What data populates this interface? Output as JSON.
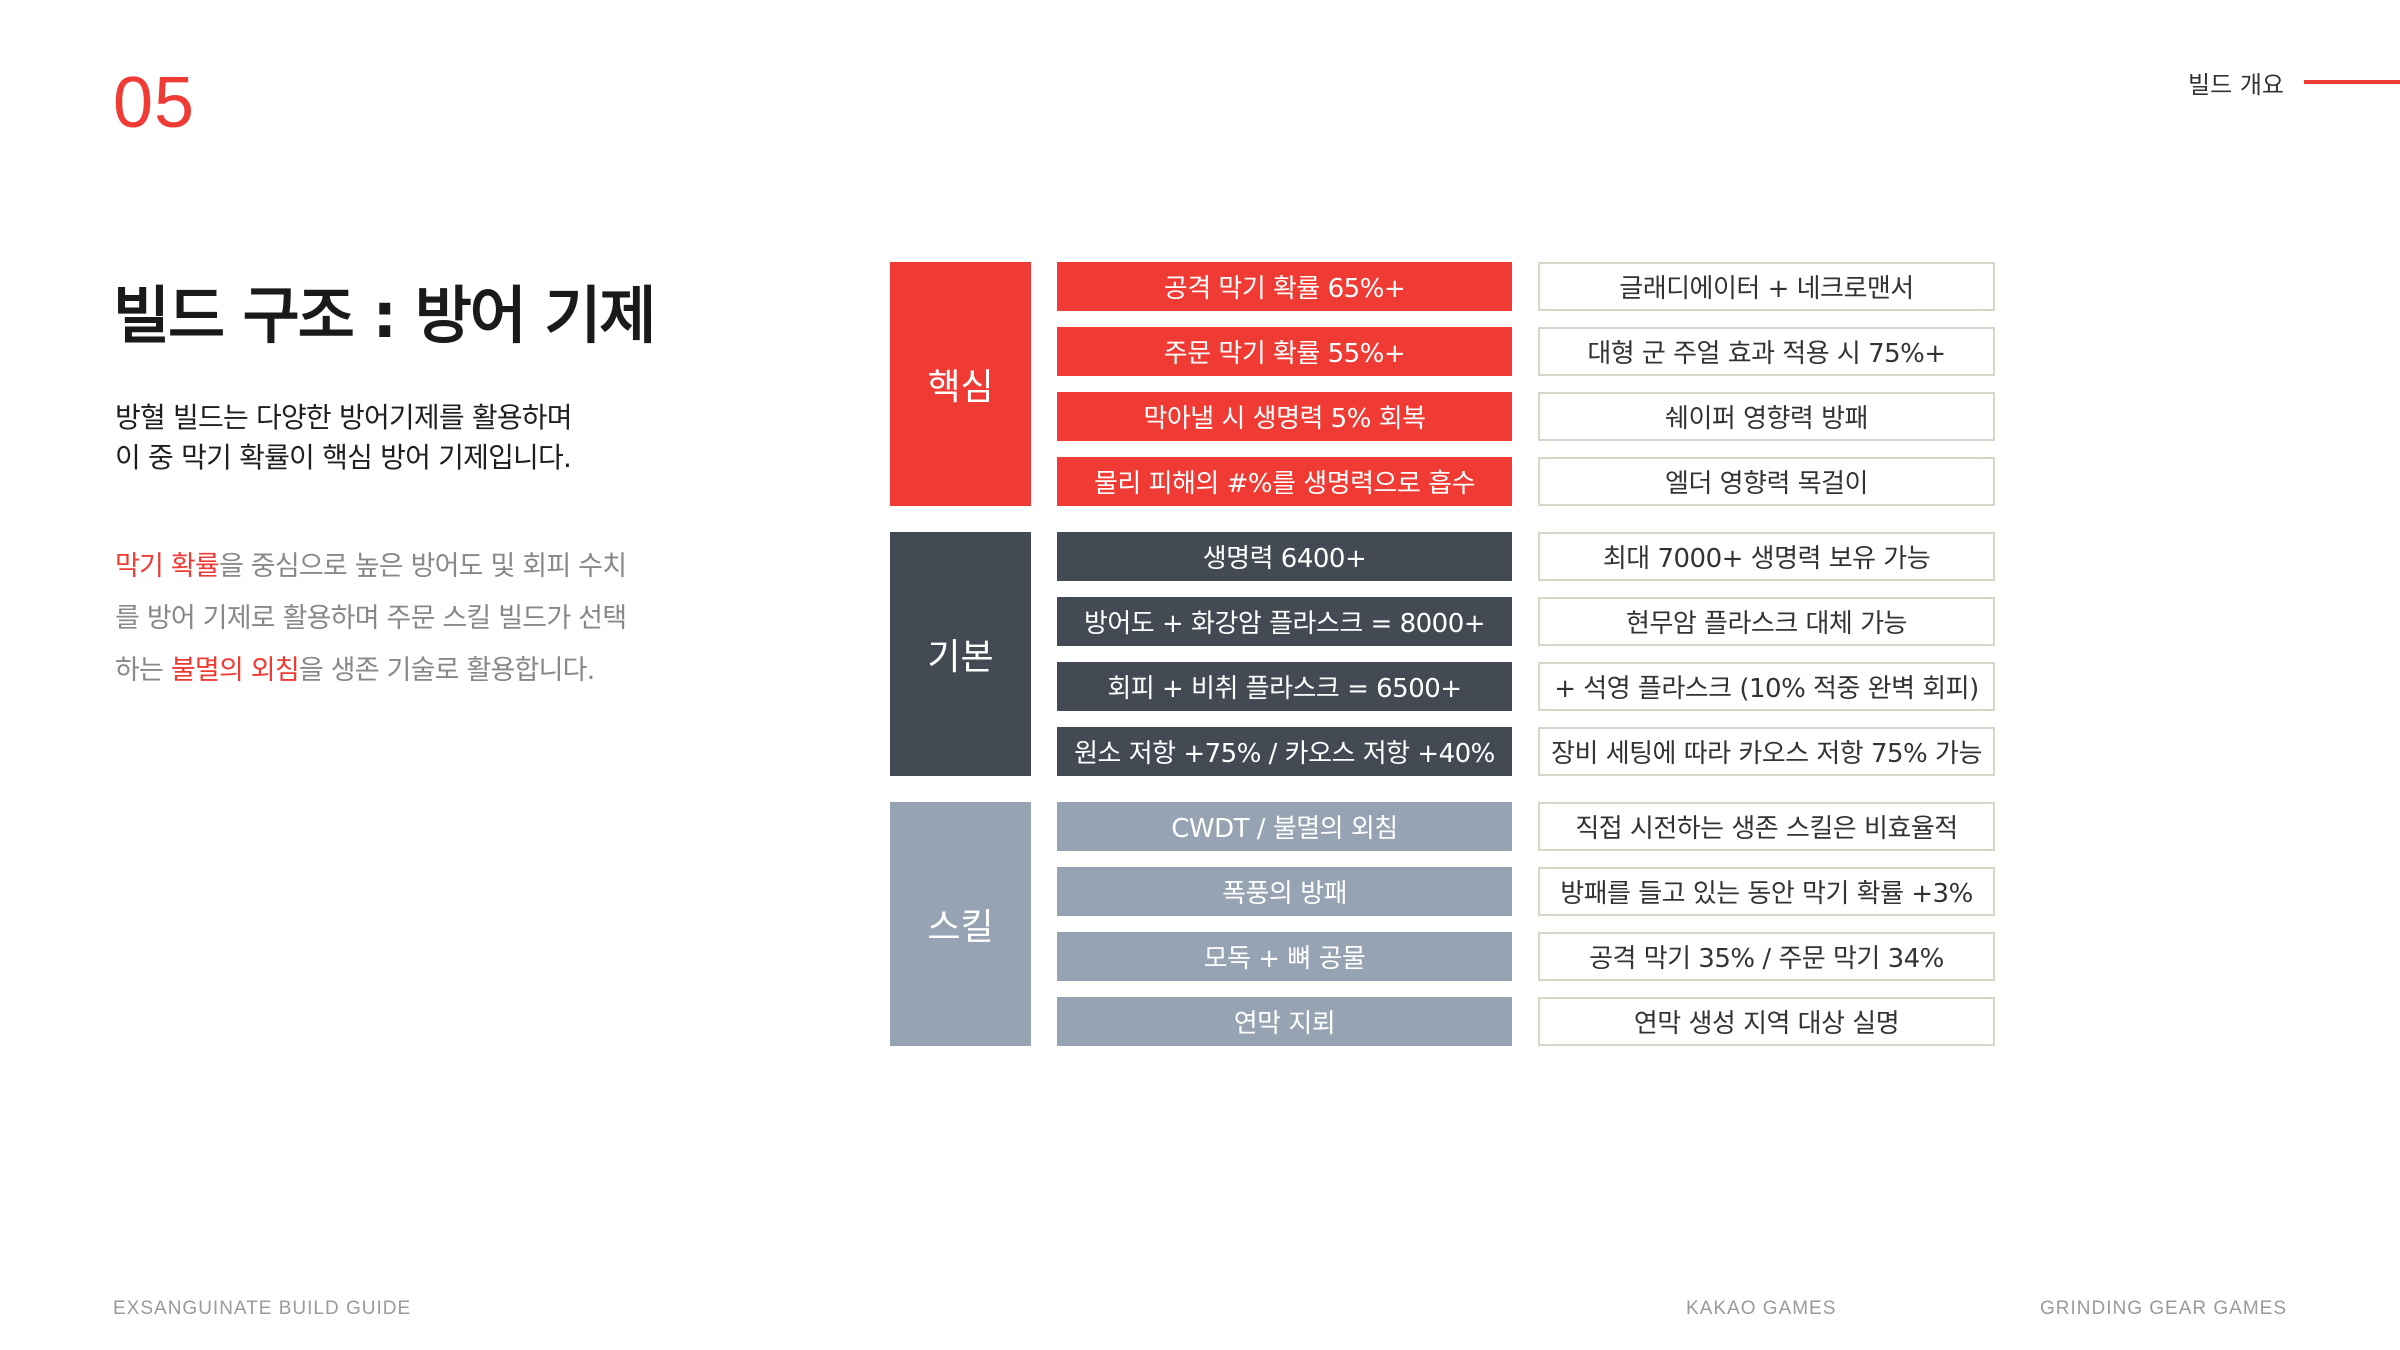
{
  "slide_number": "05",
  "section_label": "빌드 개요",
  "title": "빌드 구조 : 방어 기제",
  "lead": {
    "line1": "방혈 빌드는 다양한 방어기제를 활용하며",
    "line2": "이 중 막기 확률이 핵심 방어 기제입니다."
  },
  "description": {
    "part1": "막기 확률",
    "part2": "을 중심으로  높은 방어도 및 회피 수치",
    "part3": "를 방어 기제로 활용하며 주문 스킬 빌드가 선택",
    "part4": "하는 ",
    "part5": "불멸의 외침",
    "part6": "을 생존 기술로 활용합니다."
  },
  "groups": [
    {
      "category": "핵심",
      "color": "#ef3b34",
      "rows": [
        {
          "mid": "공격 막기 확률 65%+",
          "right": "글래디에이터 + 네크로맨서"
        },
        {
          "mid": "주문 막기 확률 55%+",
          "right": "대형 군 주얼 효과 적용 시 75%+"
        },
        {
          "mid": "막아낼 시 생명력 5% 회복",
          "right": "쉐이퍼 영향력 방패"
        },
        {
          "mid": "물리 피해의 #%를 생명력으로 흡수",
          "right": "엘더 영향력 목걸이"
        }
      ]
    },
    {
      "category": "기본",
      "color": "#434a54",
      "rows": [
        {
          "mid": "생명력 6400+",
          "right": "최대 7000+ 생명력 보유 가능"
        },
        {
          "mid": "방어도 + 화강암 플라스크 = 8000+",
          "right": "현무암 플라스크 대체 가능"
        },
        {
          "mid": "회피 + 비취 플라스크 = 6500+",
          "right": "+ 석영 플라스크 (10% 적중 완벽 회피)"
        },
        {
          "mid": "원소 저항 +75% / 카오스 저항 +40%",
          "right": "장비 세팅에 따라 카오스 저항 75% 가능"
        }
      ]
    },
    {
      "category": "스킬",
      "color": "#95a3b2",
      "rows": [
        {
          "mid": "CWDT / 불멸의 외침",
          "right": "직접 시전하는 생존 스킬은 비효율적"
        },
        {
          "mid": "폭풍의 방패",
          "right": "방패를 들고 있는 동안 막기 확률 +3%"
        },
        {
          "mid": "모독 + 뼈 공물",
          "right": "공격 막기 35% / 주문 막기 34%"
        },
        {
          "mid": "연막 지뢰",
          "right": "연막 생성 지역 대상 실명"
        }
      ]
    }
  ],
  "footer": {
    "left": "EXSANGUINATE  BUILD GUIDE",
    "center": "KAKAO GAMES",
    "right": "GRINDING GEAR GAMES"
  }
}
